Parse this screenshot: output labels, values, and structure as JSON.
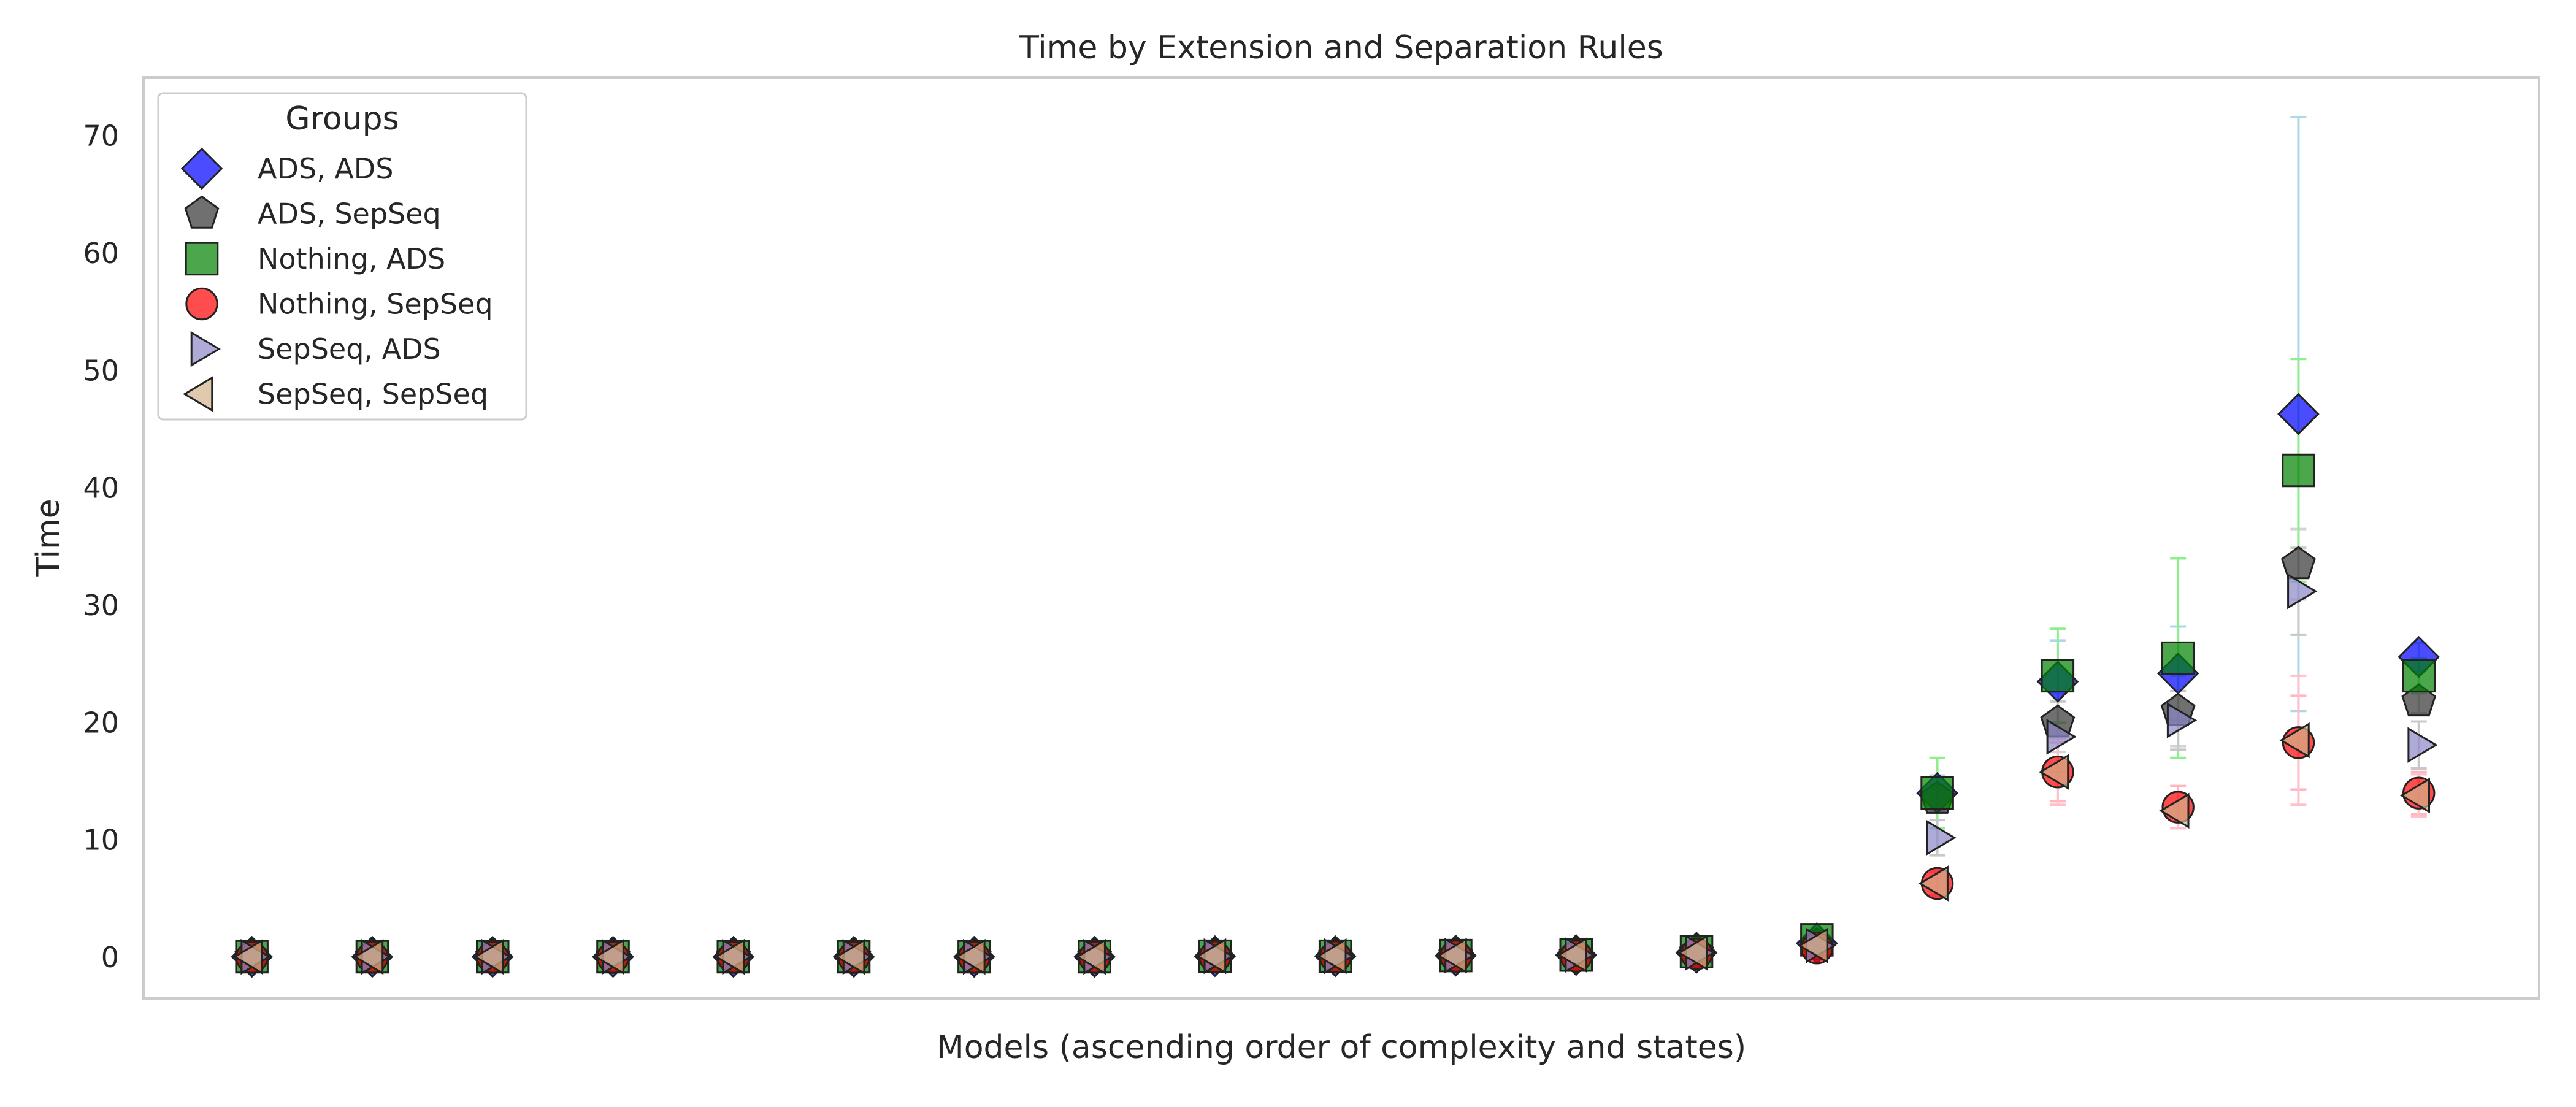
{
  "chart_data": {
    "type": "scatter",
    "title": "Time by Extension and Separation Rules",
    "xlabel": "Models (ascending order of complexity and states)",
    "ylabel": "Time",
    "ylim": [
      -3.5,
      75
    ],
    "xlim": [
      -0.9,
      19
    ],
    "yticks": [
      0,
      10,
      20,
      30,
      40,
      50,
      60,
      70
    ],
    "grid": false,
    "legend": {
      "title": "Groups",
      "position": "top-left"
    },
    "x": [
      0,
      1,
      2,
      3,
      4,
      5,
      6,
      7,
      8,
      9,
      10,
      11,
      12,
      13,
      14,
      15,
      16,
      17,
      18
    ],
    "series": [
      {
        "name": "ADS, ADS",
        "marker": "diamond",
        "color": "#0000ff",
        "error_color": "#add8e6",
        "values": [
          0.05,
          0.05,
          0.05,
          0.05,
          0.05,
          0.05,
          0.05,
          0.05,
          0.1,
          0.1,
          0.15,
          0.2,
          0.4,
          1.2,
          14.0,
          23.5,
          24.2,
          46.3,
          25.6
        ],
        "errors": [
          0,
          0,
          0,
          0,
          0,
          0,
          0,
          0,
          0,
          0,
          0,
          0,
          0,
          0.2,
          1.5,
          3.5,
          4.0,
          25.3,
          1.2
        ]
      },
      {
        "name": "ADS, SepSeq",
        "marker": "pentagon",
        "color": "#333333",
        "error_color": "#d3d3d3",
        "values": [
          0.05,
          0.05,
          0.05,
          0.05,
          0.05,
          0.05,
          0.05,
          0.05,
          0.1,
          0.1,
          0.15,
          0.2,
          0.4,
          1.0,
          13.5,
          20.0,
          21.0,
          33.5,
          21.8
        ],
        "errors": [
          0,
          0,
          0,
          0,
          0,
          0,
          0,
          0,
          0,
          0,
          0,
          0,
          0,
          0.2,
          1.2,
          2.5,
          3.0,
          3.0,
          1.0
        ]
      },
      {
        "name": "Nothing, ADS",
        "marker": "square",
        "color": "#008000",
        "error_color": "#90ee90",
        "values": [
          0.05,
          0.05,
          0.05,
          0.05,
          0.05,
          0.05,
          0.05,
          0.05,
          0.1,
          0.1,
          0.15,
          0.2,
          0.5,
          1.5,
          14.0,
          24.0,
          25.5,
          41.5,
          24.0
        ],
        "errors": [
          0,
          0,
          0,
          0,
          0,
          0,
          0,
          0,
          0,
          0,
          0,
          0,
          0,
          0.2,
          3.0,
          4.0,
          8.5,
          9.5,
          1.5
        ]
      },
      {
        "name": "Nothing, SepSeq",
        "marker": "circle",
        "color": "#ff0000",
        "error_color": "#ffb6c1",
        "values": [
          0.0,
          0.0,
          0.0,
          0.0,
          0.0,
          0.0,
          0.0,
          0.0,
          0.05,
          0.05,
          0.1,
          0.1,
          0.3,
          0.8,
          6.3,
          15.8,
          12.8,
          18.3,
          14.0
        ],
        "errors": [
          0,
          0,
          0,
          0,
          0,
          0,
          0,
          0,
          0,
          0,
          0,
          0,
          0,
          0.1,
          1.0,
          2.5,
          1.8,
          4.0,
          1.8
        ]
      },
      {
        "name": "SepSeq, ADS",
        "marker": "triangle-right",
        "color": "#8c88c8",
        "error_color": "#c8c8c8",
        "values": [
          0.05,
          0.05,
          0.05,
          0.05,
          0.05,
          0.05,
          0.05,
          0.05,
          0.1,
          0.1,
          0.15,
          0.2,
          0.4,
          1.0,
          10.2,
          18.8,
          20.2,
          31.2,
          18.1
        ],
        "errors": [
          0,
          0,
          0,
          0,
          0,
          0,
          0,
          0,
          0,
          0,
          0,
          0,
          0,
          0.2,
          1.5,
          3.0,
          2.5,
          3.7,
          2.0
        ]
      },
      {
        "name": "SepSeq, SepSeq",
        "marker": "triangle-left",
        "color": "#d2b48c",
        "error_color": "#ffc0cb",
        "values": [
          0.05,
          0.05,
          0.05,
          0.05,
          0.05,
          0.05,
          0.05,
          0.05,
          0.1,
          0.1,
          0.15,
          0.2,
          0.4,
          1.0,
          6.3,
          15.8,
          12.5,
          18.5,
          13.8
        ],
        "errors": [
          0,
          0,
          0,
          0,
          0,
          0,
          0,
          0,
          0,
          0,
          0,
          0,
          0,
          0.2,
          1.2,
          2.8,
          1.5,
          5.5,
          1.8
        ]
      }
    ]
  }
}
